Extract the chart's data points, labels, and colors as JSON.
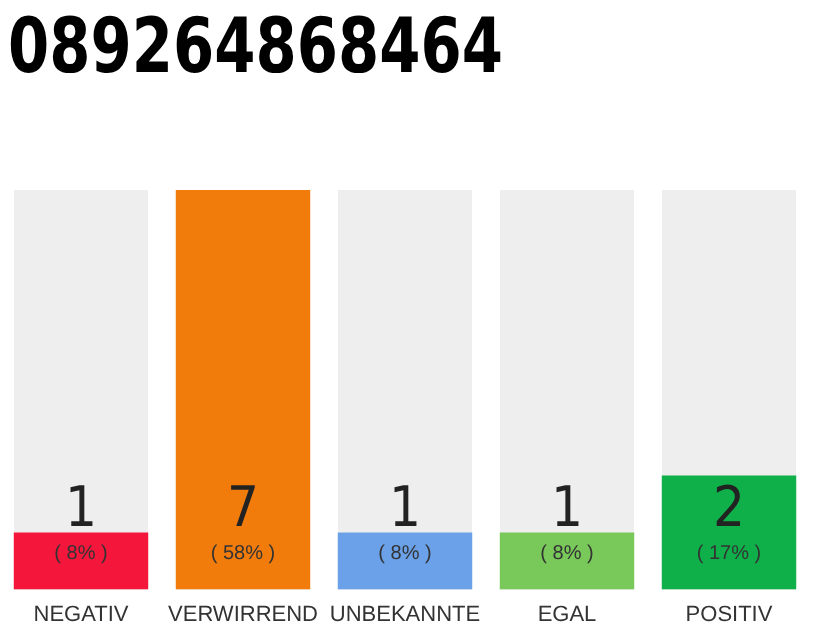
{
  "chart_data": {
    "type": "bar",
    "title": "089264868464",
    "categories": [
      "NEGATIV",
      "VERWIRREND",
      "UNBEKANNTE",
      "EGAL",
      "POSITIV"
    ],
    "values": [
      1,
      7,
      1,
      1,
      2
    ],
    "colors": [
      "#f5173b",
      "#f27c0b",
      "#6aa1e8",
      "#78c85a",
      "#0fb04a"
    ],
    "data_labels": true,
    "annotations": [
      "( 8% )",
      "( 58% )",
      "( 8% )",
      "( 8% )",
      "( 17% )"
    ],
    "ylim": [
      0,
      7
    ],
    "tick_labels": "x",
    "grid": false,
    "legend": false
  }
}
